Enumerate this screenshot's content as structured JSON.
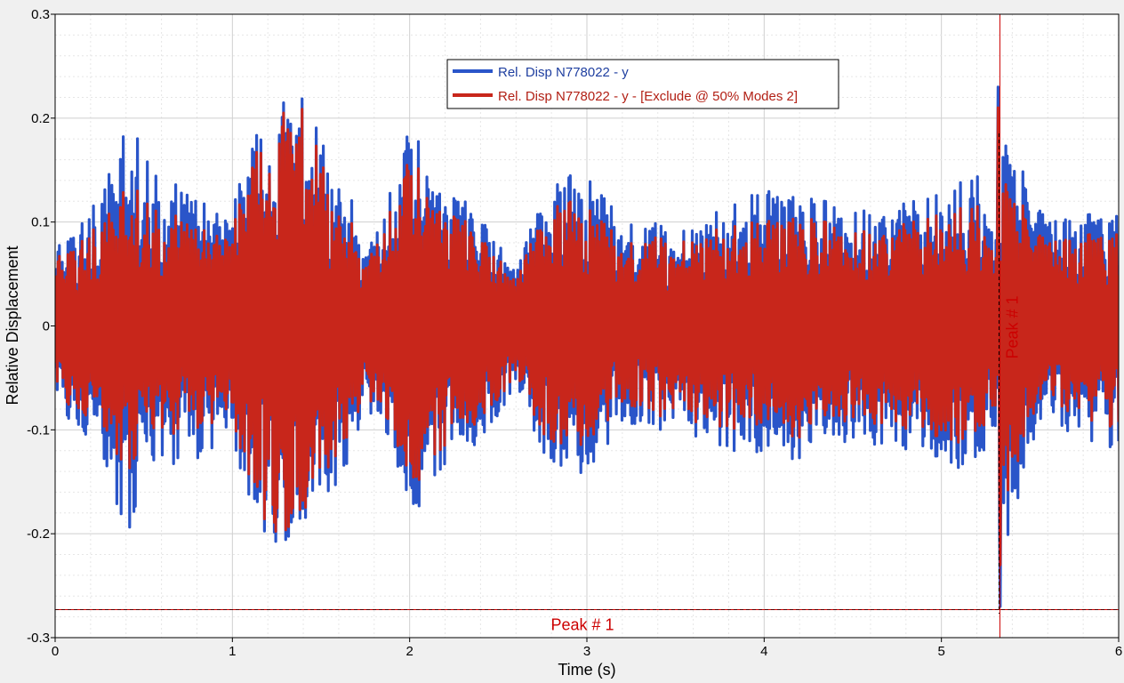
{
  "chart_data": {
    "type": "line",
    "title": "",
    "xlabel": "Time (s)",
    "ylabel": "Relative Displacement",
    "xlim": [
      0,
      6
    ],
    "ylim": [
      -0.3,
      0.3
    ],
    "x_ticks": [
      0,
      1,
      2,
      3,
      4,
      5,
      6
    ],
    "x_tick_labels": [
      "0",
      "1",
      "2",
      "3",
      "4",
      "5",
      "6"
    ],
    "y_ticks": [
      -0.3,
      -0.2,
      -0.1,
      0,
      0.1,
      0.2,
      0.3
    ],
    "y_tick_labels": [
      "-0.3",
      "-0.2",
      "-0.1",
      "0",
      "0.1",
      "0.2",
      "0.3"
    ],
    "grid": true,
    "legend_position": "top-center",
    "series": [
      {
        "name": "Rel. Disp N778022 - y",
        "color": "#2a55c9",
        "envelope_time": [
          0.0,
          0.2,
          0.4,
          0.6,
          0.8,
          1.0,
          1.1,
          1.2,
          1.3,
          1.4,
          1.5,
          1.6,
          1.8,
          2.0,
          2.2,
          2.4,
          2.6,
          2.8,
          3.0,
          3.2,
          3.5,
          3.8,
          4.0,
          4.2,
          4.5,
          4.8,
          5.0,
          5.2,
          5.3,
          5.33,
          5.4,
          5.5,
          5.6,
          5.8,
          6.0
        ],
        "envelope_max": [
          0.08,
          0.11,
          0.2,
          0.14,
          0.13,
          0.12,
          0.17,
          0.21,
          0.22,
          0.22,
          0.18,
          0.15,
          0.08,
          0.2,
          0.15,
          0.11,
          0.06,
          0.14,
          0.15,
          0.1,
          0.1,
          0.12,
          0.13,
          0.13,
          0.11,
          0.12,
          0.13,
          0.15,
          0.1,
          0.23,
          0.19,
          0.13,
          0.1,
          0.11,
          0.12
        ],
        "peak_max": 0.23,
        "peak_min": -0.27
      },
      {
        "name": "Rel. Disp N778022 - y - [Exclude @ 50% Modes 2]",
        "color": "#c8261b",
        "envelope_time": [
          0.0,
          0.2,
          0.4,
          0.6,
          0.8,
          1.0,
          1.1,
          1.2,
          1.3,
          1.4,
          1.5,
          1.6,
          1.8,
          2.0,
          2.2,
          2.4,
          2.6,
          2.8,
          3.0,
          3.2,
          3.5,
          3.8,
          4.0,
          4.2,
          4.5,
          4.8,
          5.0,
          5.2,
          5.3,
          5.33,
          5.4,
          5.5,
          5.6,
          5.8,
          6.0
        ],
        "envelope_max": [
          0.07,
          0.09,
          0.14,
          0.11,
          0.1,
          0.1,
          0.15,
          0.2,
          0.21,
          0.21,
          0.16,
          0.12,
          0.07,
          0.17,
          0.13,
          0.09,
          0.05,
          0.12,
          0.12,
          0.08,
          0.09,
          0.1,
          0.1,
          0.11,
          0.09,
          0.1,
          0.11,
          0.12,
          0.08,
          0.18,
          0.15,
          0.1,
          0.08,
          0.09,
          0.1
        ],
        "peak_max": 0.21,
        "peak_min": -0.23
      }
    ],
    "annotations": [
      {
        "type": "vline",
        "x": 5.33,
        "label": "Peak # 1",
        "color": "#cc0000"
      },
      {
        "type": "hline",
        "y": -0.273,
        "label": "Peak # 1",
        "color": "#cc0000"
      }
    ]
  }
}
